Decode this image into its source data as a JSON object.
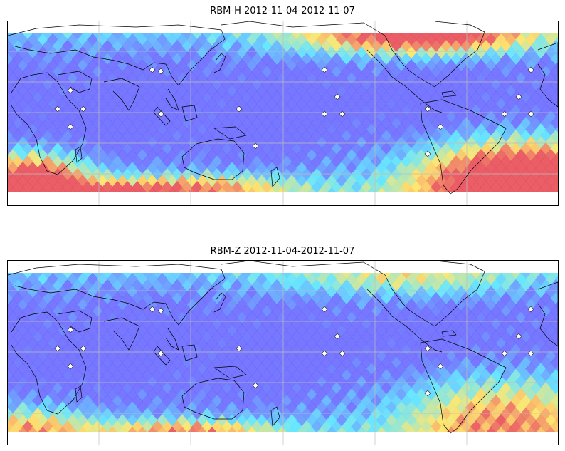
{
  "maps": [
    {
      "title": "RBM-H 2012-11-04-2012-11-07",
      "field": "h",
      "colors": {
        "low": "#6b6bff",
        "mid": "#5ce5ff",
        "high": "#ffe566",
        "max": "#e8505a"
      }
    },
    {
      "title": "RBM-Z 2012-11-04-2012-11-07",
      "field": "z",
      "colors": {
        "low": "#6b6bff",
        "mid": "#5ce5ff",
        "high": "#ffe566",
        "max": "#e8505a"
      }
    }
  ],
  "gridlines": "on",
  "station_marker_icon": "white-diamond-icon",
  "coastline_color": "#000000"
}
